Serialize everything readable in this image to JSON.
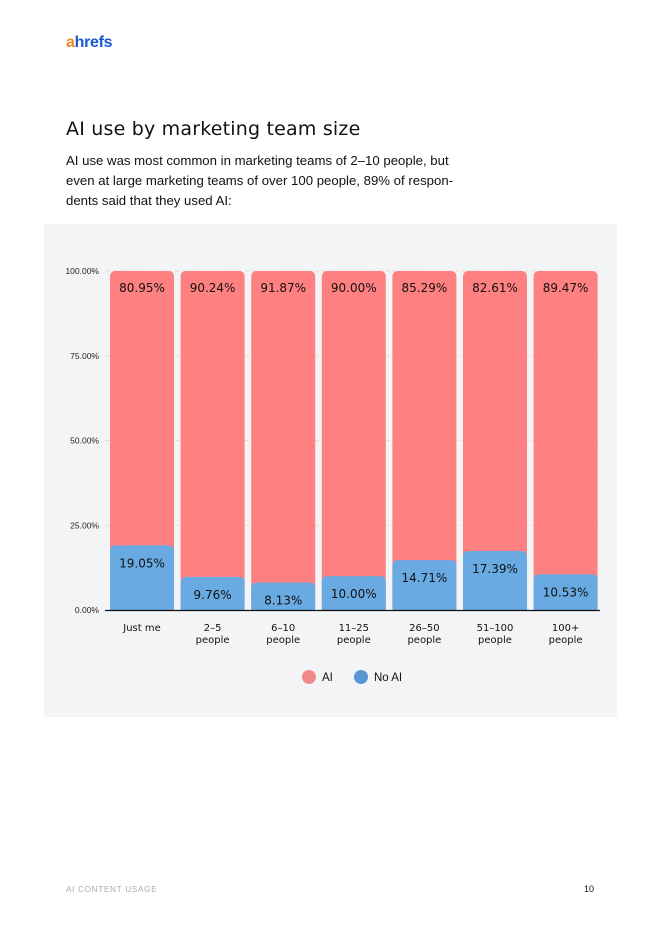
{
  "header": {
    "logo_a": "a",
    "logo_rest": "hrefs"
  },
  "title": "AI use by marketing team size",
  "subtitle": "AI use was most common in marketing teams of 2–10 people, but even at large marketing teams of over 100 people, 89% of respon-dents said that they used AI:",
  "footer": {
    "section": "AI CONTENT USAGE",
    "page": "10"
  },
  "chart_data": {
    "type": "bar",
    "stacked": true,
    "categories": [
      "Just me",
      "2–5 people",
      "6–10 people",
      "11–25 people",
      "26–50 people",
      "51–100 people",
      "100+ people"
    ],
    "category_lines": [
      [
        "Just me"
      ],
      [
        "2–5",
        "people"
      ],
      [
        "6–10",
        "people"
      ],
      [
        "11–25",
        "people"
      ],
      [
        "26–50",
        "people"
      ],
      [
        "51–100",
        "people"
      ],
      [
        "100+",
        "people"
      ]
    ],
    "series": [
      {
        "name": "AI",
        "color": "#ff8080",
        "values": [
          80.95,
          90.24,
          91.87,
          90.0,
          85.29,
          82.61,
          89.47
        ],
        "labels": [
          "80.95%",
          "90.24%",
          "91.87%",
          "90.00%",
          "85.29%",
          "82.61%",
          "89.47%"
        ]
      },
      {
        "name": "No AI",
        "color": "#6aaae2",
        "values": [
          19.05,
          9.76,
          8.13,
          10.0,
          14.71,
          17.39,
          10.53
        ],
        "labels": [
          "19.05%",
          "9.76%",
          "8.13%",
          "10.00%",
          "14.71%",
          "17.39%",
          "10.53%"
        ]
      }
    ],
    "yticks": [
      "0.00%",
      "25.00%",
      "50.00%",
      "75.00%",
      "100.00%"
    ],
    "ylim": [
      0,
      100
    ],
    "grid": true,
    "legend": "bottom",
    "legend_colors": {
      "AI": "#f08a8a",
      "No AI": "#5b96d4"
    }
  }
}
